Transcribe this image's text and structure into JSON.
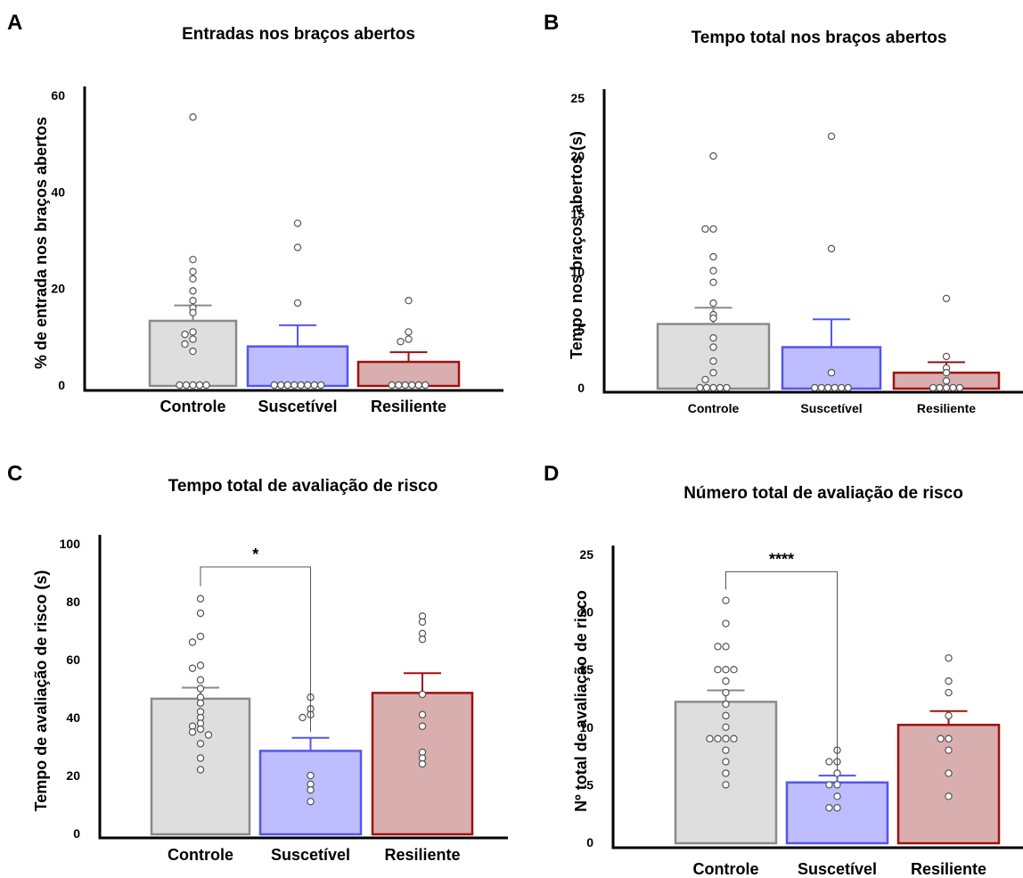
{
  "chart_data": [
    {
      "panel": "A",
      "type": "bar",
      "title": "Entradas nos braços abertos",
      "ylabel": "% de entrada nos braços abertos",
      "xlabel": "",
      "categories": [
        "Controle",
        "Suscetível",
        "Resiliente"
      ],
      "values": [
        13.3,
        8.0,
        4.8
      ],
      "sem": [
        3.2,
        4.4,
        2.0
      ],
      "ylim": [
        0,
        60
      ],
      "yticks": [
        0,
        20,
        40,
        60
      ],
      "points": [
        [
          55.5,
          26,
          23.5,
          22,
          19.5,
          17.5,
          16,
          15,
          11,
          10.5,
          9.5,
          8.5,
          7,
          0,
          0,
          0,
          0,
          0
        ],
        [
          33.5,
          28.5,
          17,
          0,
          0,
          0,
          0,
          0,
          0,
          0,
          0
        ],
        [
          17.5,
          11,
          9.5,
          9,
          0,
          0,
          0,
          0,
          0,
          0
        ]
      ],
      "significance": [],
      "grid": false,
      "legend": "none"
    },
    {
      "panel": "B",
      "type": "bar",
      "title": "Tempo total nos braços abertos",
      "ylabel": "Tempo nos braços abertos (s)",
      "xlabel": "",
      "categories": [
        "Controle",
        "Suscetível",
        "Resiliente"
      ],
      "values": [
        5.5,
        3.5,
        1.3
      ],
      "sem": [
        1.4,
        2.4,
        0.9
      ],
      "ylim": [
        0,
        25
      ],
      "yticks": [
        0,
        5,
        10,
        15,
        20,
        25
      ],
      "points": [
        [
          20,
          13.7,
          13.7,
          11.3,
          10.1,
          9.1,
          7.3,
          6.3,
          6.0,
          4.3,
          3.5,
          2.3,
          1.3,
          0.7,
          0,
          0,
          0,
          0,
          0
        ],
        [
          21.7,
          12,
          1.3,
          0,
          0,
          0,
          0,
          0,
          0
        ],
        [
          7.7,
          2.7,
          1.7,
          1.3,
          0.6,
          0,
          0,
          0,
          0,
          0
        ]
      ],
      "significance": [],
      "grid": false,
      "legend": "none"
    },
    {
      "panel": "C",
      "type": "bar",
      "title": "Tempo total de avaliação de risco",
      "ylabel": "Tempo de avaliação de risco (s)",
      "xlabel": "",
      "categories": [
        "Controle",
        "Suscetível",
        "Resiliente"
      ],
      "values": [
        46.5,
        28.5,
        48.5
      ],
      "sem": [
        3.8,
        4.5,
        6.8
      ],
      "ylim": [
        0,
        100
      ],
      "yticks": [
        0,
        20,
        40,
        60,
        80,
        100
      ],
      "points": [
        [
          81,
          76,
          68,
          66,
          58,
          57,
          53,
          50,
          47,
          45,
          42,
          40,
          38,
          37,
          36,
          35,
          34,
          31,
          26,
          22
        ],
        [
          47,
          43,
          41,
          40,
          20,
          17,
          15,
          11
        ],
        [
          75,
          73,
          69,
          67,
          48,
          41,
          37,
          28,
          26,
          24
        ]
      ],
      "significance": [
        {
          "from": 0,
          "to": 1,
          "label": "*",
          "y": 92
        }
      ],
      "grid": false,
      "legend": "none"
    },
    {
      "panel": "D",
      "type": "bar",
      "title": "Número total de avaliação de risco",
      "ylabel": "Nº total de avaliação de risco",
      "xlabel": "",
      "categories": [
        "Controle",
        "Suscetível",
        "Resiliente"
      ],
      "values": [
        12.2,
        5.2,
        10.2
      ],
      "sem": [
        1.0,
        0.6,
        1.2
      ],
      "ylim": [
        0,
        25
      ],
      "yticks": [
        0,
        5,
        10,
        15,
        20,
        25
      ],
      "points": [
        [
          21,
          19,
          17,
          17,
          15,
          15,
          15,
          14,
          13,
          12,
          11,
          10,
          9,
          9,
          9,
          9,
          8,
          7,
          6,
          5
        ],
        [
          8,
          7,
          7,
          6,
          5,
          5,
          4,
          3,
          3
        ],
        [
          16,
          14,
          13,
          11,
          9,
          9,
          8,
          6,
          4
        ]
      ],
      "significance": [
        {
          "from": 0,
          "to": 1,
          "label": "****",
          "y": 23.5
        }
      ],
      "grid": false,
      "legend": "none"
    }
  ],
  "style": {
    "bar_fill": [
      "#dedede",
      "#bdbdff",
      "#d8aeae"
    ],
    "bar_stroke": [
      "#8a8a8a",
      "#5555ee",
      "#a01010"
    ],
    "point_stroke": "#555555",
    "axis_color": "#000000"
  }
}
